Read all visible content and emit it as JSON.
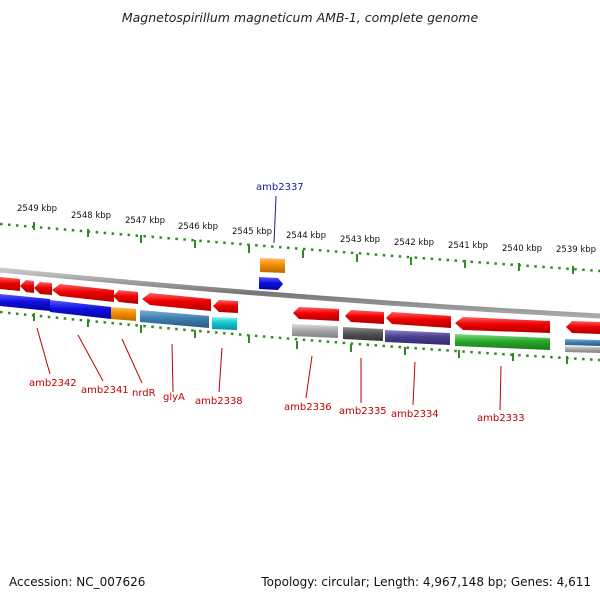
{
  "header": {
    "title": "Magnetospirillum magneticum AMB-1, complete genome"
  },
  "ticks": [
    {
      "label": "2549 kbp"
    },
    {
      "label": "2548 kbp"
    },
    {
      "label": "2547 kbp"
    },
    {
      "label": "2546 kbp"
    },
    {
      "label": "2545 kbp"
    },
    {
      "label": "2544 kbp"
    },
    {
      "label": "2543 kbp"
    },
    {
      "label": "2542 kbp"
    },
    {
      "label": "2541 kbp"
    },
    {
      "label": "2540 kbp"
    },
    {
      "label": "2539 kbp"
    }
  ],
  "gene_labels": [
    {
      "label": "amb2337",
      "color": "#1a1aa6"
    },
    {
      "label": "amb2342",
      "color": "#c00000"
    },
    {
      "label": "amb2341",
      "color": "#c00000"
    },
    {
      "label": "nrdR",
      "color": "#c00000"
    },
    {
      "label": "glyA",
      "color": "#c00000"
    },
    {
      "label": "amb2338",
      "color": "#c00000"
    },
    {
      "label": "amb2336",
      "color": "#c00000"
    },
    {
      "label": "amb2335",
      "color": "#c00000"
    },
    {
      "label": "amb2334",
      "color": "#c00000"
    },
    {
      "label": "amb2333",
      "color": "#c00000"
    }
  ],
  "palette": {
    "gene_red": "#e80000",
    "gene_blue": "#1010e0",
    "gene_orange": "#f08c00",
    "gene_steel": "#3f7fb0",
    "gene_cyan": "#10c8d0",
    "gene_gray": "#a8a8a8",
    "gene_darkgray": "#555555",
    "gene_purple": "#4a3f8f",
    "gene_green": "#2aa82a",
    "tick_green": "#2e8b22",
    "backbone": "#888888"
  },
  "footer": {
    "accession": "Accession: NC_007626",
    "topology": "Topology: circular; Length: 4,967,148 bp; Genes: 4,611"
  }
}
